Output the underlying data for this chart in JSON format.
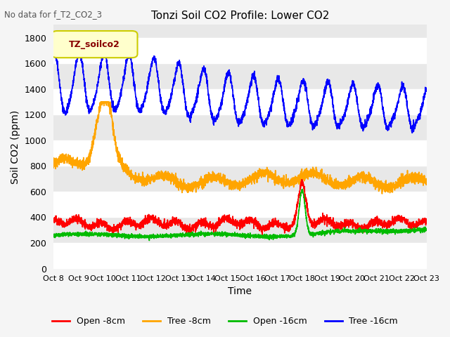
{
  "title": "Tonzi Soil CO2 Profile: Lower CO2",
  "suptitle": "No data for f_T2_CO2_3",
  "ylabel": "Soil CO2 (ppm)",
  "xlabel": "Time",
  "ylim": [
    0,
    1900
  ],
  "yticks": [
    0,
    200,
    400,
    600,
    800,
    1000,
    1200,
    1400,
    1600,
    1800
  ],
  "xtick_labels": [
    "Oct 8",
    "Oct 9",
    "Oct 10",
    "Oct 11",
    "Oct 12",
    "Oct 13",
    "Oct 14",
    "Oct 15",
    "Oct 16",
    "Oct 17",
    "Oct 18",
    "Oct 19",
    "Oct 20",
    "Oct 21",
    "Oct 22",
    "Oct 23"
  ],
  "n_ticks": 16,
  "legend_label": "TZ_soilco2",
  "legend_entries": [
    "Open -8cm",
    "Tree -8cm",
    "Open -16cm",
    "Tree -16cm"
  ],
  "legend_colors": [
    "#ff0000",
    "#ffa500",
    "#00bb00",
    "#0000ff"
  ],
  "bg_color": "#e8e8e8",
  "plot_bg_color": "#e8e8e8",
  "grid_color": "#ffffff",
  "seed": 42
}
